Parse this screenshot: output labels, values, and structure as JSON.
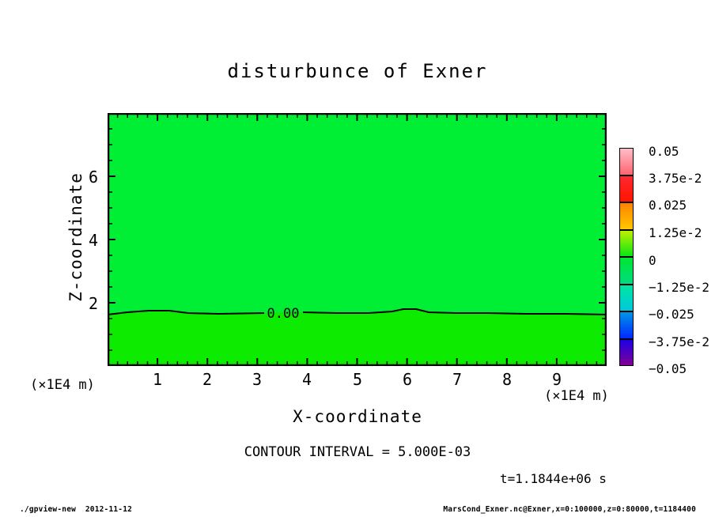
{
  "page": {
    "background": "#ffffff"
  },
  "chart_data": {
    "type": "contour",
    "title": "disturbunce of Exner",
    "xlabel": "X-coordinate",
    "ylabel": "Z-coordinate",
    "x_unit_label": "(×1E4 m)",
    "y_unit_label": "(×1E4 m)",
    "xlim": [
      0,
      10
    ],
    "ylim": [
      0,
      8
    ],
    "x_ticks": [
      "1",
      "2",
      "3",
      "4",
      "5",
      "6",
      "7",
      "8",
      "9"
    ],
    "y_ticks": [
      "2",
      "4",
      "6"
    ],
    "x_minor_per_major": 5,
    "y_minor_per_major": 4,
    "grid": false,
    "field_summary": "Exner disturbance nearly uniform ~0 over domain; single 0.00 contour line near z = 1.7e4 m with slight undulation and small bump near x = 6e4 m",
    "contour_label": "0.00",
    "contour_level": 0.0,
    "contour_z_position": 1.7,
    "contour_interval_text": "CONTOUR INTERVAL = 5.000E-03",
    "time_text": "t=1.1844e+06 s",
    "fill_above_contour": "#00EF34",
    "fill_below_contour": "#0DEB00",
    "colorbar": {
      "min": -0.05,
      "max": 0.05,
      "labels": [
        "0.05",
        "3.75e-2",
        "0.025",
        "1.25e-2",
        "0",
        "−1.25e-2",
        "−0.025",
        "−3.75e-2",
        "−0.05"
      ],
      "segments": [
        {
          "from": "#FFBEC8",
          "to": "#FF6470"
        },
        {
          "from": "#FF2832",
          "to": "#FF1400"
        },
        {
          "from": "#FF8200",
          "to": "#FFC800"
        },
        {
          "from": "#BEF000",
          "to": "#0AE614"
        },
        {
          "from": "#00E632",
          "to": "#00DC82"
        },
        {
          "from": "#00E6A0",
          "to": "#00C8DC"
        },
        {
          "from": "#0096E6",
          "to": "#0028FF"
        },
        {
          "from": "#1E00E6",
          "to": "#820096"
        }
      ]
    }
  },
  "footer": {
    "left": "./gpview-new  2012-11-12",
    "right": "MarsCond_Exner.nc@Exner,x=0:100000,z=0:80000,t=1184400"
  }
}
